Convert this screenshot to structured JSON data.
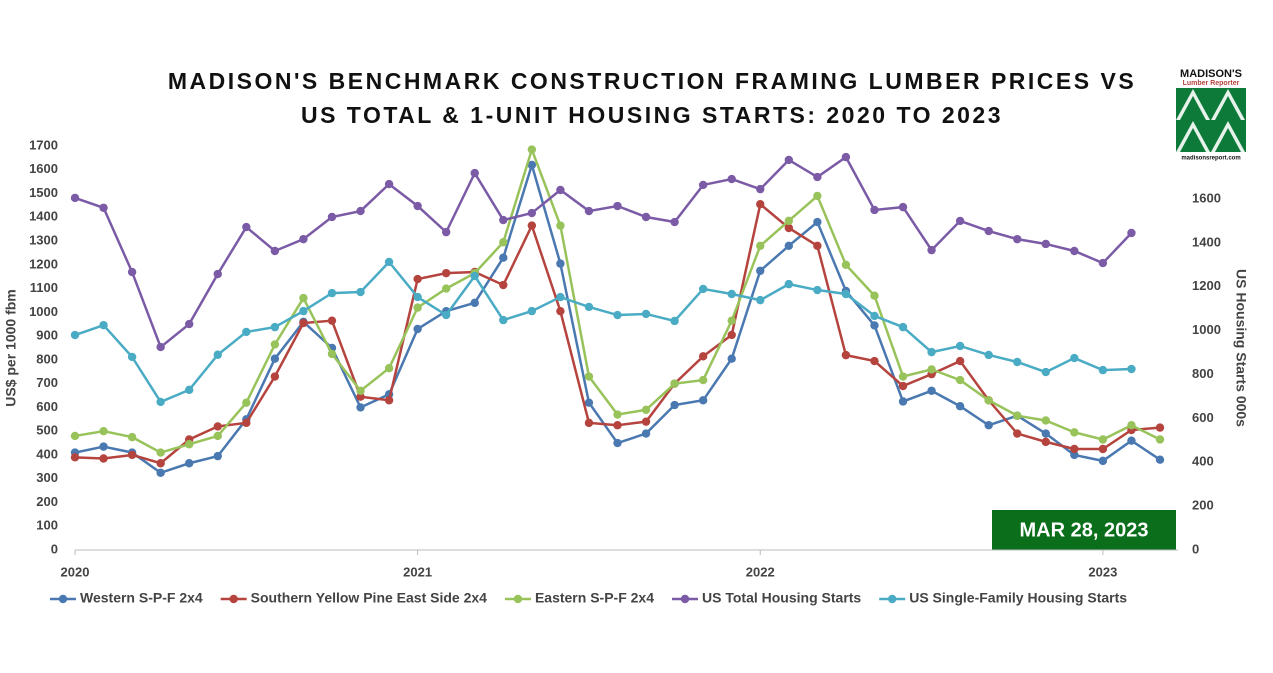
{
  "chart_data": {
    "type": "line",
    "title": [
      "MADISON'S BENCHMARK CONSTRUCTION FRAMING LUMBER PRICES VS",
      "US TOTAL & 1-UNIT HOUSING STARTS: 2020 TO 2023"
    ],
    "y_label": "US$ per 1000 fbm",
    "y2_label": "US Housing Starts 000s",
    "annotation": "MAR 28, 2023",
    "categories": [
      "2020",
      null,
      null,
      null,
      null,
      null,
      null,
      null,
      null,
      null,
      null,
      null,
      "2021",
      null,
      null,
      null,
      null,
      null,
      null,
      null,
      null,
      null,
      null,
      null,
      "2022",
      null,
      null,
      null,
      null,
      null,
      null,
      null,
      null,
      null,
      null,
      null,
      "2023",
      null,
      null
    ],
    "ylim": [
      0,
      1700
    ],
    "yticks": [
      0,
      100,
      200,
      300,
      400,
      500,
      600,
      700,
      800,
      900,
      1000,
      1100,
      1200,
      1300,
      1400,
      1500,
      1600,
      1700
    ],
    "y2lim": [
      0,
      1600
    ],
    "y2ticks": [
      0,
      200,
      400,
      600,
      800,
      1000,
      1200,
      1400,
      1600
    ],
    "grid": false,
    "legend": "bottom",
    "series": [
      {
        "name": "Western S-P-F 2x4",
        "color": "#4a78b0",
        "values": [
          410,
          435,
          410,
          325,
          365,
          395,
          550,
          805,
          960,
          850,
          600,
          655,
          930,
          1005,
          1040,
          1230,
          1620,
          1205,
          620,
          450,
          490,
          610,
          630,
          805,
          1175,
          1280,
          1380,
          1090,
          945,
          625,
          670,
          605,
          525,
          565,
          490,
          400,
          375,
          460,
          380
        ]
      },
      {
        "name": "Southern Yellow Pine East Side 2x4",
        "color": "#b5433e",
        "values": [
          390,
          385,
          400,
          365,
          465,
          520,
          535,
          730,
          955,
          965,
          645,
          630,
          1140,
          1165,
          1170,
          1115,
          1365,
          1005,
          535,
          525,
          540,
          700,
          815,
          905,
          1455,
          1355,
          1280,
          820,
          795,
          690,
          740,
          795,
          630,
          490,
          455,
          425,
          425,
          505,
          515
        ]
      },
      {
        "name": "Eastern S-P-F 2x4",
        "color": "#98c35a",
        "values": [
          480,
          500,
          475,
          410,
          445,
          480,
          620,
          865,
          1060,
          825,
          670,
          765,
          1020,
          1100,
          1165,
          1295,
          1685,
          1365,
          730,
          570,
          590,
          700,
          715,
          965,
          1280,
          1385,
          1490,
          1200,
          1070,
          730,
          760,
          715,
          630,
          565,
          545,
          495,
          465,
          525,
          465
        ]
      },
      {
        "name": "US Total Housing Starts",
        "color": "#7b5aa6",
        "axis": "y2",
        "values": [
          1605,
          1560,
          1267,
          925,
          1030,
          1258,
          1472,
          1363,
          1417,
          1518,
          1545,
          1668,
          1568,
          1449,
          1718,
          1504,
          1536,
          1641,
          1545,
          1568,
          1518,
          1495,
          1664,
          1691,
          1645,
          1778,
          1700,
          1791,
          1550,
          1563,
          1367,
          1500,
          1454,
          1417,
          1395,
          1363,
          1308,
          1445,
          null
        ]
      },
      {
        "name": "US Single-Family Housing Starts",
        "color": "#4aabc4",
        "axis": "y2",
        "values": [
          980,
          1025,
          880,
          675,
          730,
          890,
          994,
          1016,
          1089,
          1171,
          1176,
          1313,
          1153,
          1071,
          1249,
          1048,
          1089,
          1153,
          1108,
          1071,
          1076,
          1044,
          1190,
          1167,
          1139,
          1212,
          1185,
          1167,
          1067,
          1016,
          902,
          930,
          889,
          857,
          811,
          875,
          820,
          825,
          null
        ]
      }
    ]
  },
  "logo": {
    "name": "MADISON'S",
    "subtitle": "Lumber Reporter",
    "url": "madisonsreport.com"
  }
}
